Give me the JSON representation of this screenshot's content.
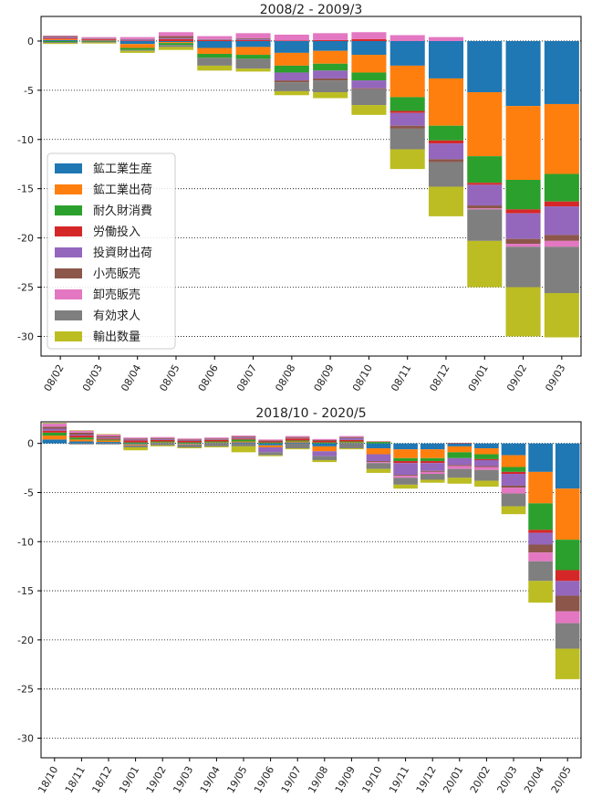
{
  "colors": {
    "鉱工業生産": "#1f77b4",
    "鉱工業出荷": "#ff7f0e",
    "耐久財消費": "#2ca02c",
    "労働投入": "#d62728",
    "投資財出荷": "#9467bd",
    "小売販売": "#8c564b",
    "卸売販売": "#e377c2",
    "有効求人": "#7f7f7f",
    "輸出数量": "#bcbd22"
  },
  "chart_data": [
    {
      "type": "bar",
      "stacked": true,
      "title": "2008/2 - 2009/3",
      "ylim": [
        -32,
        2.5
      ],
      "yticks": [
        0,
        -5,
        -10,
        -15,
        -20,
        -25,
        -30
      ],
      "grid": "horizontal dotted",
      "legend": {
        "placement": "left",
        "entries": [
          "鉱工業生産",
          "鉱工業出荷",
          "耐久財消費",
          "労働投入",
          "投資財出荷",
          "小売販売",
          "卸売販売",
          "有効求人",
          "輸出数量"
        ]
      },
      "categories": [
        "08/02",
        "08/03",
        "08/04",
        "08/05",
        "08/06",
        "08/07",
        "08/08",
        "08/09",
        "08/10",
        "08/11",
        "08/12",
        "09/01",
        "09/02",
        "09/03"
      ],
      "series": [
        {
          "name": "鉱工業生産",
          "values": [
            0.1,
            0.05,
            -0.3,
            -0.1,
            -0.7,
            -0.6,
            -1.2,
            -1.0,
            -1.4,
            -2.5,
            -3.8,
            -5.2,
            -6.6,
            -6.4
          ]
        },
        {
          "name": "鉱工業出荷",
          "values": [
            0.1,
            0.05,
            -0.4,
            -0.1,
            -0.6,
            -0.8,
            -1.3,
            -1.3,
            -1.8,
            -3.2,
            -4.8,
            -6.5,
            -7.5,
            -7.1
          ]
        },
        {
          "name": "耐久財消費",
          "values": [
            -0.1,
            -0.05,
            -0.2,
            -0.2,
            -0.4,
            -0.4,
            -0.7,
            -0.7,
            -0.8,
            -1.4,
            -1.5,
            -2.7,
            -3.0,
            -2.8
          ]
        },
        {
          "name": "労働投入",
          "values": [
            0.1,
            0.1,
            0.05,
            0.2,
            0.1,
            0.1,
            0.05,
            0.1,
            0.2,
            -0.2,
            -0.3,
            -0.2,
            -0.4,
            -0.5
          ]
        },
        {
          "name": "投資財出荷",
          "values": [
            0.1,
            0.05,
            0.1,
            0.1,
            0.05,
            0.1,
            -0.8,
            -0.8,
            -0.8,
            -1.3,
            -1.6,
            -2.1,
            -2.6,
            -2.9
          ]
        },
        {
          "name": "小売販売",
          "values": [
            0.1,
            0.05,
            0.05,
            0.2,
            0.05,
            0.1,
            -0.2,
            -0.2,
            -0.1,
            -0.3,
            -0.3,
            -0.3,
            -0.5,
            -0.6
          ]
        },
        {
          "name": "卸売販売",
          "values": [
            0.05,
            0.1,
            0.2,
            0.4,
            0.3,
            0.5,
            0.6,
            0.7,
            0.7,
            0.6,
            0.4,
            -0.1,
            -0.3,
            -0.6
          ]
        },
        {
          "name": "有効求人",
          "values": [
            -0.1,
            -0.1,
            -0.1,
            -0.2,
            -0.8,
            -1.0,
            -0.9,
            -1.2,
            -1.6,
            -2.1,
            -2.5,
            -3.2,
            -4.1,
            -4.7
          ]
        },
        {
          "name": "輸出数量",
          "values": [
            -0.1,
            -0.1,
            -0.2,
            -0.3,
            -0.5,
            -0.3,
            -0.4,
            -0.6,
            -1.0,
            -2.0,
            -3.0,
            -4.7,
            -5.0,
            -4.5
          ]
        }
      ]
    },
    {
      "type": "bar",
      "stacked": true,
      "title": "2018/10 - 2020/5",
      "ylim": [
        -32,
        2.2
      ],
      "yticks": [
        0,
        -5,
        -10,
        -15,
        -20,
        -25,
        -30
      ],
      "grid": "horizontal dotted",
      "categories": [
        "18/10",
        "18/11",
        "18/12",
        "19/01",
        "19/02",
        "19/03",
        "19/04",
        "19/05",
        "19/06",
        "19/07",
        "19/08",
        "19/09",
        "19/10",
        "19/11",
        "19/12",
        "20/01",
        "20/02",
        "20/03",
        "20/04",
        "20/05"
      ],
      "series": [
        {
          "name": "鉱工業生産",
          "values": [
            0.4,
            0.2,
            0.15,
            -0.1,
            0.05,
            -0.05,
            0.05,
            0.1,
            -0.2,
            0.1,
            -0.3,
            0.05,
            -0.5,
            -0.6,
            -0.6,
            -0.3,
            -0.5,
            -1.2,
            -2.9,
            -4.6
          ]
        },
        {
          "name": "鉱工業出荷",
          "values": [
            0.4,
            0.2,
            0.15,
            -0.1,
            0.05,
            -0.05,
            0.05,
            0.1,
            -0.2,
            0.1,
            -0.5,
            0.05,
            -0.6,
            -0.9,
            -0.9,
            -0.6,
            -0.6,
            -1.2,
            -3.2,
            -5.2
          ]
        },
        {
          "name": "耐久財消費",
          "values": [
            0.3,
            0.2,
            0.1,
            0.1,
            0.1,
            0.1,
            0.1,
            0.2,
            0.1,
            0.1,
            0.1,
            0.1,
            0.15,
            -0.3,
            -0.3,
            -0.6,
            -0.5,
            -0.5,
            -2.7,
            -3.1
          ]
        },
        {
          "name": "労働投入",
          "values": [
            0.2,
            0.2,
            0.1,
            0.2,
            0.15,
            0.15,
            0.15,
            0.1,
            0.1,
            0.2,
            0.15,
            0.15,
            0.05,
            -0.2,
            -0.2,
            0.05,
            -0.1,
            -0.2,
            -0.3,
            -1.1
          ]
        },
        {
          "name": "投資財出荷",
          "values": [
            0.2,
            0.1,
            0.1,
            0.1,
            0.1,
            0.05,
            0.05,
            0.1,
            -0.5,
            0.05,
            -0.5,
            0.2,
            -0.7,
            -1.2,
            -0.8,
            -0.7,
            -0.6,
            -1.2,
            -1.2,
            -1.5
          ]
        },
        {
          "name": "小売販売",
          "values": [
            0.2,
            0.2,
            0.15,
            0.1,
            0.1,
            0.1,
            0.1,
            0.1,
            0.1,
            0.1,
            0.1,
            0.1,
            -0.1,
            -0.1,
            -0.1,
            -0.1,
            -0.1,
            -0.2,
            -0.8,
            -1.6
          ]
        },
        {
          "name": "卸売販売",
          "values": [
            0.3,
            0.2,
            0.15,
            0.1,
            0.1,
            0.1,
            0.1,
            0.1,
            0.1,
            0.1,
            0.1,
            0.1,
            -0.1,
            -0.2,
            -0.2,
            -0.3,
            -0.3,
            -0.6,
            -0.9,
            -1.2
          ]
        },
        {
          "name": "有効求人",
          "values": [
            0.05,
            -0.1,
            -0.1,
            -0.2,
            -0.2,
            -0.3,
            -0.3,
            -0.3,
            -0.3,
            -0.5,
            -0.4,
            -0.5,
            -0.6,
            -0.7,
            -0.6,
            -0.9,
            -1.1,
            -1.3,
            -2.0,
            -2.6
          ]
        },
        {
          "name": "輸出数量",
          "values": [
            0.05,
            0.05,
            0.05,
            -0.3,
            -0.1,
            -0.1,
            -0.1,
            -0.6,
            -0.1,
            -0.1,
            -0.2,
            -0.1,
            -0.4,
            -0.4,
            -0.3,
            -0.6,
            -0.6,
            -0.8,
            -2.2,
            -3.1
          ]
        }
      ]
    }
  ]
}
